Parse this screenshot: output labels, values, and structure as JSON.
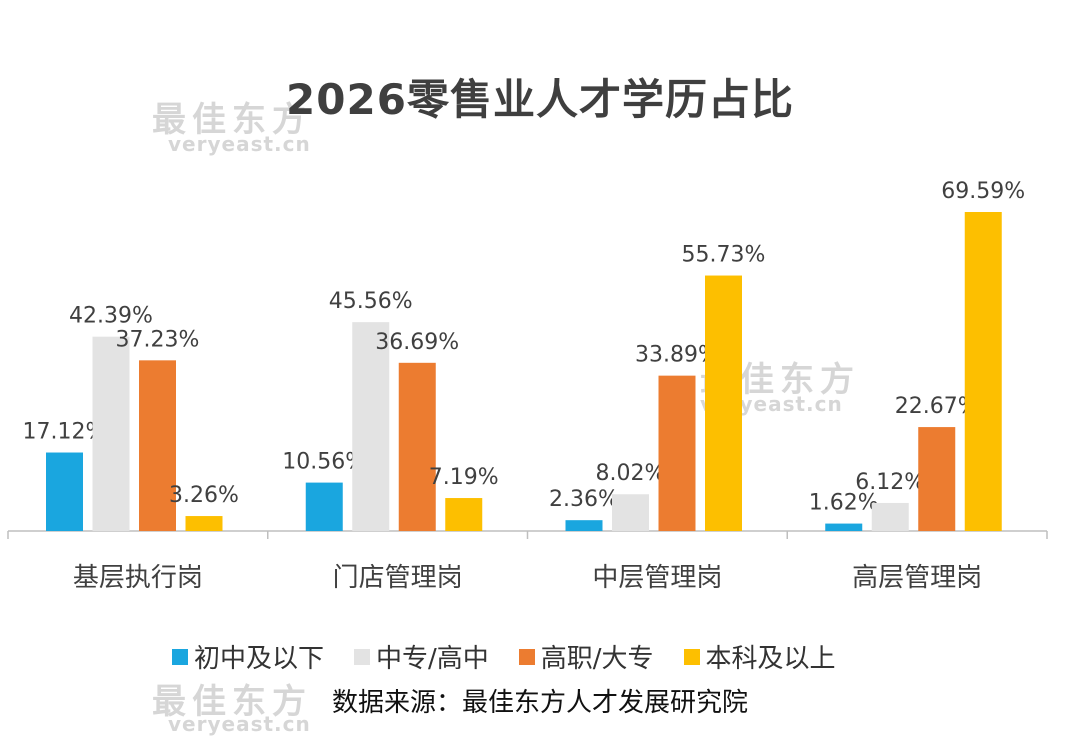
{
  "title": "2026零售业人才学历占比",
  "source": "数据来源：最佳东方人才发展研究院",
  "watermark": {
    "cn": "最佳东方",
    "en": "veryeast.cn"
  },
  "chart_data": {
    "type": "bar",
    "title": "2026零售业人才学历占比",
    "xlabel": "",
    "ylabel": "",
    "ylim": [
      0,
      75
    ],
    "grid": false,
    "legend_position": "bottom",
    "categories": [
      "基层执行岗",
      "门店管理岗",
      "中层管理岗",
      "高层管理岗"
    ],
    "series": [
      {
        "name": "初中及以下",
        "color": "#1aa6df",
        "values": [
          17.12,
          10.56,
          2.36,
          1.62
        ],
        "labels": [
          "17.12%",
          "10.56%",
          "2.36%",
          "1.62%"
        ]
      },
      {
        "name": "中专/高中",
        "color": "#e3e3e3",
        "values": [
          42.39,
          45.56,
          8.02,
          6.12
        ],
        "labels": [
          "42.39%",
          "45.56%",
          "8.02%",
          "6.12%"
        ]
      },
      {
        "name": "高职/大专",
        "color": "#ec7c30",
        "values": [
          37.23,
          36.69,
          33.89,
          22.67
        ],
        "labels": [
          "37.23%",
          "36.69%",
          "33.89%",
          "22.67%"
        ]
      },
      {
        "name": "本科及以上",
        "color": "#fdbf00",
        "values": [
          3.26,
          7.19,
          55.73,
          69.59
        ],
        "labels": [
          "3.26%",
          "7.19%",
          "55.73%",
          "69.59%"
        ]
      }
    ]
  }
}
